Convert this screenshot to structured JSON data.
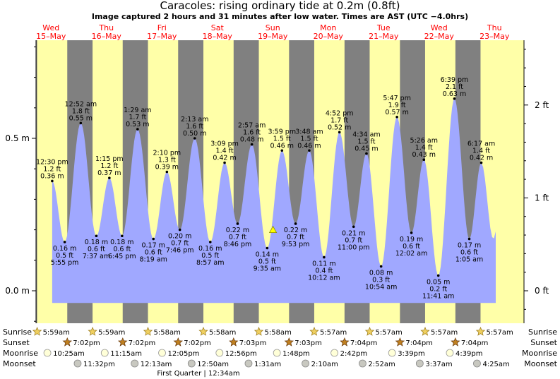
{
  "header": {
    "title": "Caracoles: rising  ordinary tide at 0.2m (0.8ft)",
    "subtitle": "Image captured 2 hours and 31 minutes after low water. Times are AST (UTC −4.0hrs)"
  },
  "colors": {
    "night": "#808080",
    "day": "#ffffa8",
    "tide_fill": "#a0a8ff",
    "date_red": "#ff0000"
  },
  "chart_data": {
    "type": "area",
    "title": "Caracoles: rising  ordinary tide at 0.2m (0.8ft)",
    "y_left_unit": "m",
    "y_left_ticks": [
      {
        "value": 0.0,
        "label": "0.0 m"
      },
      {
        "value": 0.5,
        "label": "0.5 m"
      }
    ],
    "y_right_ticks": [
      {
        "value": 0,
        "label": "0 ft"
      },
      {
        "value": 1,
        "label": "1 ft"
      },
      {
        "value": 2,
        "label": "2 ft"
      }
    ],
    "day_headers": [
      {
        "dow": "Wed",
        "date": "15–May"
      },
      {
        "dow": "Thu",
        "date": "16–May"
      },
      {
        "dow": "Fri",
        "date": "17–May"
      },
      {
        "dow": "Sat",
        "date": "18–May"
      },
      {
        "dow": "Sun",
        "date": "19–May"
      },
      {
        "dow": "Mon",
        "date": "20–May"
      },
      {
        "dow": "Tue",
        "date": "21–May"
      },
      {
        "dow": "Wed",
        "date": "22–May"
      },
      {
        "dow": "Thu",
        "date": "23–May"
      }
    ],
    "daylight": [
      {
        "sunrise": "5:59am",
        "sunset": "7:02pm"
      },
      {
        "sunrise": "5:59am",
        "sunset": "7:02pm"
      },
      {
        "sunrise": "5:58am",
        "sunset": "7:02pm"
      },
      {
        "sunrise": "5:58am",
        "sunset": "7:03pm"
      },
      {
        "sunrise": "5:58am",
        "sunset": "7:03pm"
      },
      {
        "sunrise": "5:57am",
        "sunset": "7:04pm"
      },
      {
        "sunrise": "5:57am",
        "sunset": "7:04pm"
      },
      {
        "sunrise": "5:57am",
        "sunset": "7:04pm"
      },
      {
        "sunrise": "5:57am",
        "sunset": null
      }
    ],
    "tides": [
      {
        "time": "12:30 pm",
        "ft": "1.2 ft",
        "m": 0.36,
        "high": true,
        "day": 0,
        "hour": 12.5
      },
      {
        "time": "5:55 pm",
        "ft": "0.5 ft",
        "m": 0.16,
        "high": false,
        "day": 0,
        "hour": 17.92
      },
      {
        "time": "12:52 am",
        "ft": "1.8 ft",
        "m": 0.55,
        "high": true,
        "day": 1,
        "hour": 0.87
      },
      {
        "time": "7:37 am",
        "ft": "0.6 ft",
        "m": 0.18,
        "high": false,
        "day": 1,
        "hour": 7.62
      },
      {
        "time": "1:15 pm",
        "ft": "1.2 ft",
        "m": 0.37,
        "high": true,
        "day": 1,
        "hour": 13.25
      },
      {
        "time": "6:45 pm",
        "ft": "0.6 ft",
        "m": 0.18,
        "high": false,
        "day": 1,
        "hour": 18.75
      },
      {
        "time": "1:29 am",
        "ft": "1.7 ft",
        "m": 0.53,
        "high": true,
        "day": 2,
        "hour": 1.48
      },
      {
        "time": "8:19 am",
        "ft": "0.6 ft",
        "m": 0.17,
        "high": false,
        "day": 2,
        "hour": 8.32
      },
      {
        "time": "2:10 pm",
        "ft": "1.3 ft",
        "m": 0.39,
        "high": true,
        "day": 2,
        "hour": 14.17
      },
      {
        "time": "7:46 pm",
        "ft": "0.7 ft",
        "m": 0.2,
        "high": false,
        "day": 2,
        "hour": 19.77
      },
      {
        "time": "2:13 am",
        "ft": "1.6 ft",
        "m": 0.5,
        "high": true,
        "day": 3,
        "hour": 2.22
      },
      {
        "time": "8:57 am",
        "ft": "0.5 ft",
        "m": 0.16,
        "high": false,
        "day": 3,
        "hour": 8.95
      },
      {
        "time": "3:09 pm",
        "ft": "1.4 ft",
        "m": 0.42,
        "high": true,
        "day": 3,
        "hour": 15.15
      },
      {
        "time": "8:46 pm",
        "ft": "0.7 ft",
        "m": 0.22,
        "high": false,
        "day": 3,
        "hour": 20.77
      },
      {
        "time": "2:57 am",
        "ft": "1.6 ft",
        "m": 0.48,
        "high": true,
        "day": 4,
        "hour": 2.95
      },
      {
        "time": "9:35 am",
        "ft": "0.5 ft",
        "m": 0.14,
        "high": false,
        "day": 4,
        "hour": 9.58
      },
      {
        "time": "3:59 pm",
        "ft": "1.5 ft",
        "m": 0.46,
        "high": true,
        "day": 4,
        "hour": 15.98
      },
      {
        "time": "9:53 pm",
        "ft": "0.7 ft",
        "m": 0.22,
        "high": false,
        "day": 4,
        "hour": 21.88
      },
      {
        "time": "3:48 am",
        "ft": "1.5 ft",
        "m": 0.46,
        "high": true,
        "day": 5,
        "hour": 3.8
      },
      {
        "time": "10:12 am",
        "ft": "0.4 ft",
        "m": 0.11,
        "high": false,
        "day": 5,
        "hour": 10.2
      },
      {
        "time": "4:52 pm",
        "ft": "1.7 ft",
        "m": 0.52,
        "high": true,
        "day": 5,
        "hour": 16.87
      },
      {
        "time": "11:00 pm",
        "ft": "0.7 ft",
        "m": 0.21,
        "high": false,
        "day": 5,
        "hour": 23.0
      },
      {
        "time": "4:34 am",
        "ft": "1.5 ft",
        "m": 0.45,
        "high": true,
        "day": 6,
        "hour": 4.57
      },
      {
        "time": "10:54 am",
        "ft": "0.3 ft",
        "m": 0.08,
        "high": false,
        "day": 6,
        "hour": 10.9
      },
      {
        "time": "5:47 pm",
        "ft": "1.9 ft",
        "m": 0.57,
        "high": true,
        "day": 6,
        "hour": 17.78
      },
      {
        "time": "12:02 am",
        "ft": "0.6 ft",
        "m": 0.19,
        "high": false,
        "day": 7,
        "hour": 0.03
      },
      {
        "time": "5:26 am",
        "ft": "1.4 ft",
        "m": 0.43,
        "high": true,
        "day": 7,
        "hour": 5.43
      },
      {
        "time": "11:41 am",
        "ft": "0.2 ft",
        "m": 0.05,
        "high": false,
        "day": 7,
        "hour": 11.68
      },
      {
        "time": "6:39 pm",
        "ft": "2.1 ft",
        "m": 0.63,
        "high": true,
        "day": 7,
        "hour": 18.65
      },
      {
        "time": "1:05 am",
        "ft": "0.6 ft",
        "m": 0.17,
        "high": false,
        "day": 8,
        "hour": 1.08
      },
      {
        "time": "6:17 am",
        "ft": "1.4 ft",
        "m": 0.42,
        "high": true,
        "day": 8,
        "hour": 6.28
      }
    ],
    "current": {
      "m": 0.2,
      "day": 4,
      "hour": 12.1
    },
    "moon": {
      "rise": [
        {
          "day": 0,
          "hour": 10.42,
          "label": "10:25am"
        },
        {
          "day": 1,
          "hour": 11.25,
          "label": "11:15am"
        },
        {
          "day": 2,
          "hour": 12.08,
          "label": "12:05pm"
        },
        {
          "day": 3,
          "hour": 12.93,
          "label": "12:56pm"
        },
        {
          "day": 4,
          "hour": 13.8,
          "label": "1:48pm"
        },
        {
          "day": 5,
          "hour": 14.7,
          "label": "2:42pm"
        },
        {
          "day": 6,
          "hour": 15.65,
          "label": "3:39pm"
        },
        {
          "day": 7,
          "hour": 16.65,
          "label": "4:39pm"
        }
      ],
      "set": [
        {
          "day": 0,
          "hour": 23.53,
          "label": "11:32pm"
        },
        {
          "day": 2,
          "hour": 0.22,
          "label": "12:13am"
        },
        {
          "day": 3,
          "hour": 0.85,
          "label": "12:50am"
        },
        {
          "day": 4,
          "hour": 1.52,
          "label": "1:31am"
        },
        {
          "day": 5,
          "hour": 2.17,
          "label": "2:10am"
        },
        {
          "day": 6,
          "hour": 2.87,
          "label": "2:52am"
        },
        {
          "day": 7,
          "hour": 3.62,
          "label": "3:37am"
        },
        {
          "day": 8,
          "hour": 4.42,
          "label": "4:25am"
        }
      ],
      "phase_note": "First Quarter | 12:34am"
    },
    "row_labels": [
      "Sunrise",
      "Sunset",
      "Moonrise",
      "Moonset"
    ]
  }
}
